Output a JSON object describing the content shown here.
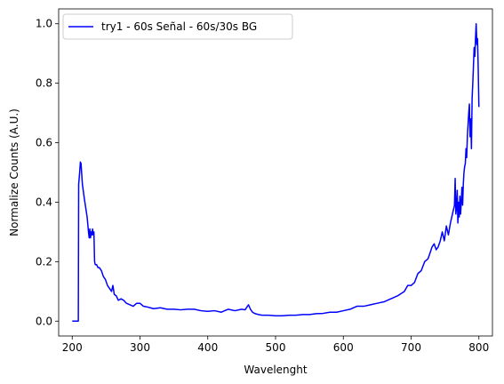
{
  "chart_data": {
    "type": "line",
    "title": "",
    "xlabel": "Wavelenght",
    "ylabel": "Normalize Counts (A.U.)",
    "xlim": [
      180,
      820
    ],
    "ylim": [
      -0.05,
      1.05
    ],
    "xticks": [
      200,
      300,
      400,
      500,
      600,
      700,
      800
    ],
    "xtick_labels": [
      "200",
      "300",
      "400",
      "500",
      "600",
      "700",
      "800"
    ],
    "yticks": [
      0.0,
      0.2,
      0.4,
      0.6,
      0.8,
      1.0
    ],
    "ytick_labels": [
      "0.0",
      "0.2",
      "0.4",
      "0.6",
      "0.8",
      "1.0"
    ],
    "grid": false,
    "legend_position": "top-left",
    "series": [
      {
        "name": "try1 - 60s Señal - 60s/30s BG",
        "color": "#0000ff",
        "x": [
          200,
          205,
          209,
          209.5,
          211,
          212,
          213,
          215,
          218,
          220,
          222,
          224,
          225,
          226,
          227,
          228,
          229,
          230,
          231,
          232,
          233,
          234,
          236,
          238,
          240,
          243,
          246,
          249,
          252,
          255,
          258,
          260,
          262,
          265,
          268,
          272,
          276,
          280,
          285,
          290,
          295,
          300,
          305,
          310,
          315,
          320,
          330,
          340,
          350,
          360,
          370,
          380,
          390,
          400,
          410,
          420,
          430,
          440,
          450,
          455,
          460,
          463,
          466,
          470,
          475,
          480,
          490,
          500,
          510,
          520,
          530,
          540,
          550,
          560,
          570,
          580,
          590,
          600,
          610,
          620,
          630,
          640,
          650,
          660,
          670,
          680,
          690,
          695,
          700,
          705,
          710,
          715,
          720,
          725,
          728,
          731,
          734,
          737,
          740,
          743,
          746,
          749,
          752,
          755,
          758,
          761,
          764,
          765,
          766,
          767,
          768,
          769,
          770,
          771,
          772,
          773,
          774,
          775,
          776,
          777,
          778,
          779,
          780,
          781,
          782,
          783,
          784,
          785,
          786,
          787,
          788,
          789,
          790,
          791,
          792,
          793,
          794,
          795,
          796,
          797,
          798,
          799,
          800
        ],
        "y": [
          0.0,
          0.0,
          0.0,
          0.46,
          0.5,
          0.535,
          0.53,
          0.46,
          0.41,
          0.38,
          0.35,
          0.3,
          0.28,
          0.31,
          0.28,
          0.3,
          0.29,
          0.31,
          0.29,
          0.3,
          0.2,
          0.19,
          0.19,
          0.18,
          0.18,
          0.17,
          0.15,
          0.14,
          0.12,
          0.11,
          0.1,
          0.12,
          0.09,
          0.085,
          0.07,
          0.075,
          0.07,
          0.06,
          0.055,
          0.05,
          0.06,
          0.06,
          0.05,
          0.048,
          0.045,
          0.042,
          0.045,
          0.04,
          0.04,
          0.038,
          0.04,
          0.04,
          0.035,
          0.033,
          0.035,
          0.03,
          0.04,
          0.035,
          0.04,
          0.038,
          0.055,
          0.04,
          0.03,
          0.025,
          0.022,
          0.02,
          0.02,
          0.018,
          0.018,
          0.02,
          0.02,
          0.022,
          0.022,
          0.025,
          0.026,
          0.03,
          0.03,
          0.035,
          0.04,
          0.05,
          0.05,
          0.055,
          0.06,
          0.065,
          0.075,
          0.085,
          0.1,
          0.12,
          0.12,
          0.13,
          0.16,
          0.17,
          0.2,
          0.21,
          0.23,
          0.25,
          0.26,
          0.24,
          0.25,
          0.27,
          0.3,
          0.27,
          0.32,
          0.29,
          0.33,
          0.36,
          0.39,
          0.48,
          0.36,
          0.38,
          0.44,
          0.33,
          0.4,
          0.35,
          0.42,
          0.36,
          0.4,
          0.45,
          0.39,
          0.46,
          0.5,
          0.52,
          0.53,
          0.58,
          0.55,
          0.62,
          0.66,
          0.7,
          0.73,
          0.62,
          0.68,
          0.58,
          0.75,
          0.8,
          0.86,
          0.92,
          0.89,
          0.95,
          1.0,
          0.93,
          0.95,
          0.85,
          0.72
        ]
      }
    ]
  }
}
